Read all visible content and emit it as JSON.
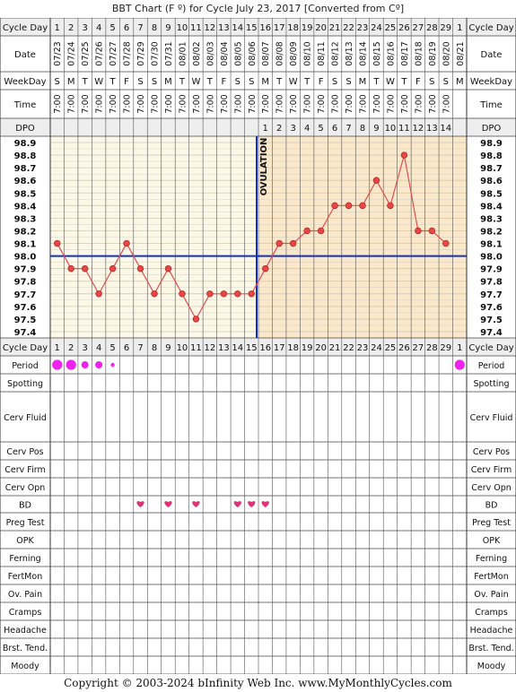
{
  "title": "BBT Chart (F º) for Cycle July 23, 2017  [Converted from Cº]",
  "copyright": "Copyright © 2003-2024 bInfinity Web Inc.     www.MyMonthlyCycles.com",
  "row_labels": {
    "cycle_day": "Cycle Day",
    "date": "Date",
    "weekday": "WeekDay",
    "time": "Time",
    "dpo": "DPO",
    "period": "Period",
    "spotting": "Spotting",
    "cerv_fluid": "Cerv Fluid",
    "cerv_pos": "Cerv Pos",
    "cerv_firm": "Cerv Firm",
    "cerv_opn": "Cerv Opn",
    "bd": "BD",
    "preg_test": "Preg Test",
    "opk": "OPK",
    "ferning": "Ferning",
    "fertmon": "FertMon",
    "ov_pain": "Ov. Pain",
    "cramps": "Cramps",
    "headache": "Headache",
    "brst_tend": "Brst. Tend.",
    "moody": "Moody"
  },
  "ovulation_label": "OVULATION",
  "colors": {
    "temp_area_pre": "#fdf8e6",
    "temp_area_post": "#fae8c8",
    "grid": "#c8c8c8",
    "temp_line": "#e05050",
    "point_fill": "#e84545",
    "coverline": "#1030c8",
    "ovulation_line": "#1030c8",
    "period_dot": "#ee22ee",
    "bd_heart": "#dd3377",
    "header_fill": "#eeeeee"
  },
  "chart_data": {
    "type": "line",
    "cycle_days": [
      "1",
      "2",
      "3",
      "4",
      "5",
      "6",
      "7",
      "8",
      "9",
      "10",
      "11",
      "12",
      "13",
      "14",
      "15",
      "16",
      "17",
      "18",
      "19",
      "20",
      "21",
      "22",
      "23",
      "24",
      "25",
      "26",
      "27",
      "28",
      "29",
      "1"
    ],
    "dates": [
      "07/23",
      "07/24",
      "07/25",
      "07/26",
      "07/27",
      "07/28",
      "07/29",
      "07/30",
      "07/31",
      "08/01",
      "08/02",
      "08/03",
      "08/04",
      "08/05",
      "08/06",
      "08/07",
      "08/08",
      "08/09",
      "08/10",
      "08/11",
      "08/12",
      "08/13",
      "08/14",
      "08/15",
      "08/16",
      "08/17",
      "08/18",
      "08/19",
      "08/20",
      "08/21"
    ],
    "weekdays": [
      "S",
      "M",
      "T",
      "W",
      "T",
      "F",
      "S",
      "S",
      "M",
      "T",
      "W",
      "T",
      "F",
      "S",
      "S",
      "M",
      "T",
      "W",
      "T",
      "F",
      "S",
      "S",
      "M",
      "T",
      "W",
      "T",
      "F",
      "S",
      "S",
      "M"
    ],
    "times": [
      "7:00",
      "7:00",
      "7:00",
      "7:00",
      "7:00",
      "7:00",
      "7:00",
      "7:00",
      "7:00",
      "7:00",
      "7:00",
      "7:00",
      "7:00",
      "7:00",
      "7:00",
      "7:00",
      "7:00",
      "7:00",
      "7:00",
      "7:00",
      "7:00",
      "7:00",
      "7:00",
      "7:00",
      "7:00",
      "7:00",
      "7:00",
      "7:00",
      "7:00",
      ""
    ],
    "dpo": [
      "",
      "",
      "",
      "",
      "",
      "",
      "",
      "",
      "",
      "",
      "",
      "",
      "",
      "",
      "",
      "1",
      "2",
      "3",
      "4",
      "5",
      "6",
      "7",
      "8",
      "9",
      "10",
      "11",
      "12",
      "13",
      "14",
      ""
    ],
    "y_ticks": [
      "98.9",
      "98.8",
      "98.7",
      "98.6",
      "98.5",
      "98.4",
      "98.3",
      "98.2",
      "98.1",
      "98.0",
      "97.9",
      "97.8",
      "97.7",
      "97.6",
      "97.5",
      "97.4"
    ],
    "ylim": [
      97.4,
      98.9
    ],
    "temperatures": [
      98.1,
      97.9,
      97.9,
      97.7,
      97.9,
      98.1,
      97.9,
      97.7,
      97.9,
      97.7,
      97.5,
      97.7,
      97.7,
      97.7,
      97.7,
      97.9,
      98.1,
      98.1,
      98.2,
      98.2,
      98.4,
      98.4,
      98.4,
      98.6,
      98.4,
      98.8,
      98.2,
      98.2,
      98.1,
      null
    ],
    "coverline": 98.0,
    "ovulation_after_day_index": 14,
    "period": [
      3,
      3,
      2,
      2,
      1,
      0,
      0,
      0,
      0,
      0,
      0,
      0,
      0,
      0,
      0,
      0,
      0,
      0,
      0,
      0,
      0,
      0,
      0,
      0,
      0,
      0,
      0,
      0,
      0,
      3
    ],
    "bd": [
      0,
      0,
      0,
      0,
      0,
      0,
      1,
      0,
      1,
      0,
      1,
      0,
      0,
      1,
      1,
      1,
      0,
      0,
      0,
      0,
      0,
      0,
      0,
      0,
      0,
      0,
      0,
      0,
      0,
      0
    ]
  }
}
